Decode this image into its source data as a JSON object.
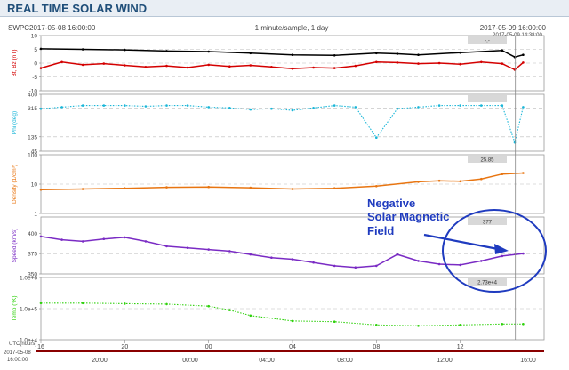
{
  "header": {
    "title": "REAL TIME SOLAR WIND",
    "source": "SWPC",
    "start_time": "2017-05-08 16:00:00",
    "cadence": "1 minute/sample, 1 day",
    "end_time": "2017-05-09 16:00:00",
    "cursor_time": "2017-05-09 14:38:00"
  },
  "annotation": {
    "lines": [
      "Negative",
      "Solar Magnetic",
      "Field"
    ],
    "color": "#1f3bbf"
  },
  "time_axis": {
    "label_1": "UTC(hours)",
    "label_2": "2017-05-08",
    "label_3": "16:00:00",
    "major_ticks": [
      "20",
      "00",
      "04",
      "08",
      "12",
      "16"
    ],
    "bar_ticks": [
      "20:00",
      "00:00",
      "04:00",
      "08:00",
      "12:00",
      "16:00"
    ]
  },
  "chart_data": [
    {
      "type": "line",
      "panel": "magnetic_field",
      "ylabel": "Bt, Bz (nT)",
      "yticks": [
        "10",
        "5",
        "0",
        "-5",
        "-10"
      ],
      "ylim": [
        -10,
        10
      ],
      "readout": "-.-",
      "series": [
        {
          "name": "Bt",
          "color": "#000000",
          "x": [
            16,
            18,
            20,
            22,
            0,
            2,
            4,
            6,
            8,
            9,
            10,
            12,
            14,
            14.6,
            15
          ],
          "values": [
            5.2,
            5.0,
            4.8,
            4.4,
            4.2,
            3.6,
            3.0,
            2.8,
            3.6,
            3.4,
            3.0,
            3.8,
            4.6,
            2.2,
            3.0
          ]
        },
        {
          "name": "Bz",
          "color": "#d40000",
          "x": [
            16,
            17,
            18,
            19,
            20,
            21,
            22,
            23,
            0,
            1,
            2,
            3,
            4,
            5,
            6,
            7,
            8,
            9,
            10,
            11,
            12,
            13,
            14,
            14.6,
            15
          ],
          "values": [
            -1.8,
            0.4,
            -0.6,
            -0.2,
            -0.8,
            -1.4,
            -1.0,
            -1.6,
            -0.6,
            -1.2,
            -0.8,
            -1.4,
            -2.0,
            -1.6,
            -1.8,
            -1.0,
            0.4,
            0.2,
            -0.2,
            0.0,
            -0.4,
            0.4,
            -0.2,
            -2.4,
            0.2
          ]
        }
      ]
    },
    {
      "type": "scatter",
      "panel": "phi",
      "ylabel": "Phi (deg)",
      "yticks": [
        "400",
        "315",
        "135",
        "45"
      ],
      "ylim": [
        45,
        400
      ],
      "readout": "",
      "series": [
        {
          "name": "Phi",
          "color": "#19b6d8",
          "x": [
            16,
            17,
            18,
            19,
            20,
            21,
            22,
            23,
            0,
            1,
            2,
            3,
            4,
            5,
            6,
            7,
            8,
            9,
            10,
            11,
            12,
            13,
            14,
            14.6,
            15
          ],
          "values": [
            310,
            320,
            330,
            330,
            330,
            325,
            330,
            330,
            320,
            315,
            305,
            310,
            300,
            315,
            330,
            320,
            130,
            310,
            320,
            330,
            330,
            330,
            330,
            100,
            320
          ]
        }
      ]
    },
    {
      "type": "line",
      "panel": "density",
      "ylabel": "Density (1/cm³)",
      "yticks": [
        "100",
        "10",
        "1"
      ],
      "ylim": [
        1,
        100
      ],
      "scale": "log",
      "readout": "25.85",
      "series": [
        {
          "name": "Density",
          "color": "#e87511",
          "x": [
            16,
            18,
            20,
            22,
            0,
            2,
            4,
            6,
            8,
            10,
            11,
            12,
            13,
            14,
            15
          ],
          "values": [
            6.5,
            6.8,
            7.2,
            7.8,
            8.0,
            7.5,
            6.8,
            7.2,
            8.5,
            12,
            13,
            12.5,
            15,
            22,
            24
          ]
        }
      ]
    },
    {
      "type": "line",
      "panel": "speed",
      "ylabel": "Speed (km/s)",
      "yticks": [
        "400",
        "375",
        "350"
      ],
      "ylim": [
        350,
        420
      ],
      "readout": "377",
      "series": [
        {
          "name": "Speed",
          "color": "#7a2bc4",
          "x": [
            16,
            17,
            18,
            19,
            20,
            21,
            22,
            23,
            0,
            1,
            2,
            3,
            4,
            5,
            6,
            7,
            8,
            9,
            10,
            11,
            12,
            13,
            14,
            15
          ],
          "values": [
            396,
            392,
            390,
            393,
            395,
            390,
            384,
            382,
            380,
            378,
            374,
            370,
            368,
            364,
            360,
            358,
            360,
            374,
            366,
            362,
            361,
            366,
            372,
            375
          ]
        }
      ]
    },
    {
      "type": "scatter",
      "panel": "temperature",
      "ylabel": "Temp (°K)",
      "yticks": [
        "1.0e+6",
        "1.0e+5",
        "1.0e+4"
      ],
      "ylim": [
        10000,
        1000000
      ],
      "scale": "log",
      "readout": "2.73e+4",
      "series": [
        {
          "name": "Temp",
          "color": "#2fd10c",
          "x": [
            16,
            18,
            20,
            22,
            0,
            1,
            2,
            4,
            6,
            8,
            10,
            12,
            14,
            15
          ],
          "values": [
            150000,
            150000,
            145000,
            140000,
            120000,
            90000,
            60000,
            40000,
            38000,
            30000,
            28000,
            30000,
            32000,
            32000
          ]
        }
      ]
    }
  ]
}
